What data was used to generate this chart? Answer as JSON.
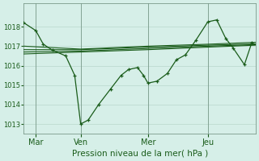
{
  "bg_color": "#d6efe8",
  "line_color": "#1a5c1a",
  "grid_color": "#b8d8cc",
  "xlabel": "Pression niveau de la mer( hPa )",
  "ylim": [
    1012.5,
    1019.2
  ],
  "yticks": [
    1013,
    1014,
    1015,
    1016,
    1017,
    1018
  ],
  "xtick_labels": [
    "Mar",
    "Ven",
    "Mer",
    "Jeu"
  ],
  "xtick_positions": [
    16,
    76,
    166,
    246
  ],
  "xlim": [
    0,
    310
  ],
  "vlines": [
    16,
    76,
    166,
    246
  ],
  "zigzag_x": [
    0,
    16,
    26,
    38,
    56,
    68,
    76,
    86,
    100,
    116,
    130,
    140,
    152,
    160,
    166,
    178,
    192,
    204,
    216,
    230,
    246,
    258,
    270,
    280,
    295,
    305
  ],
  "zigzag_y": [
    1018.2,
    1017.8,
    1017.1,
    1016.8,
    1016.5,
    1015.5,
    1013.0,
    1013.2,
    1014.0,
    1014.8,
    1015.5,
    1015.8,
    1015.9,
    1015.5,
    1015.1,
    1015.2,
    1015.6,
    1016.3,
    1016.55,
    1017.3,
    1018.25,
    1018.35,
    1017.4,
    1016.9,
    1016.05,
    1017.2
  ],
  "smooth1_x": [
    0,
    76,
    166,
    246,
    310
  ],
  "smooth1_y": [
    1017.0,
    1016.85,
    1017.0,
    1017.1,
    1017.2
  ],
  "smooth2_x": [
    0,
    76,
    166,
    246,
    310
  ],
  "smooth2_y": [
    1016.82,
    1016.82,
    1016.95,
    1017.05,
    1017.12
  ],
  "smooth3_x": [
    0,
    76,
    166,
    246,
    310
  ],
  "smooth3_y": [
    1016.7,
    1016.75,
    1016.88,
    1017.0,
    1017.08
  ],
  "smooth4_x": [
    0,
    76,
    166,
    246,
    310
  ],
  "smooth4_y": [
    1016.6,
    1016.7,
    1016.82,
    1016.95,
    1017.05
  ]
}
